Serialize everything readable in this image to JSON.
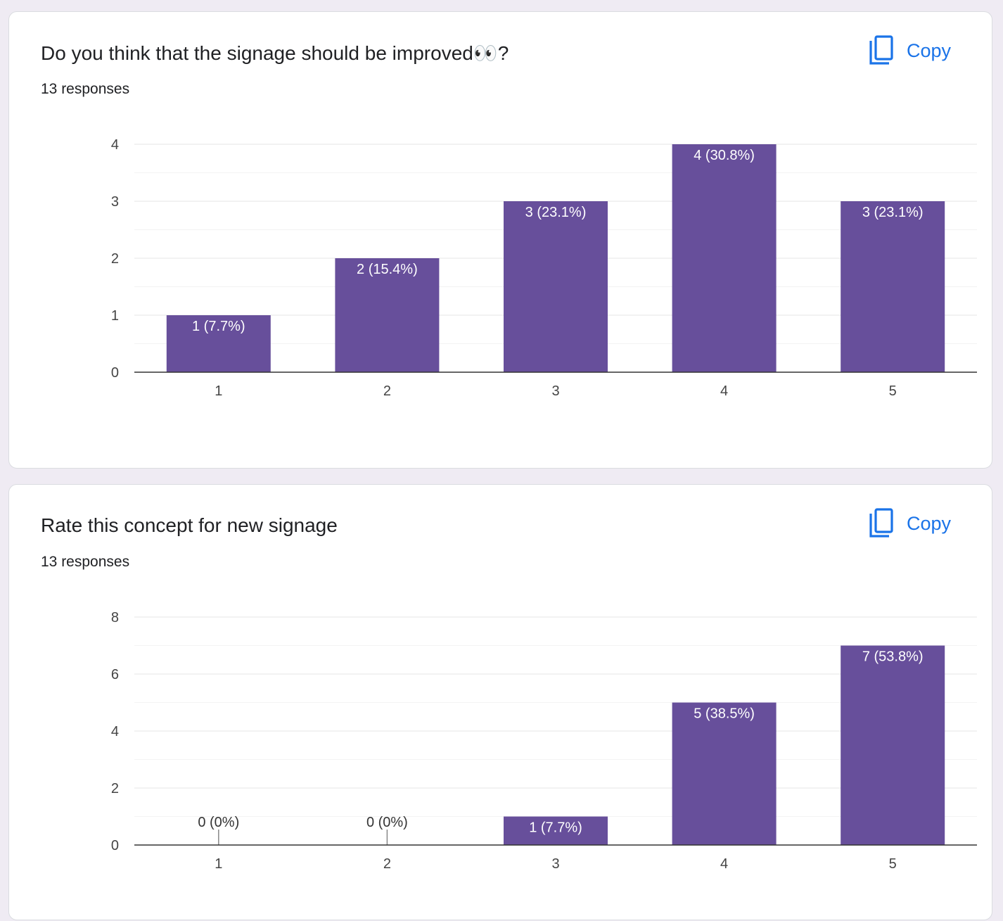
{
  "colors": {
    "bar": "#674f9b",
    "copy_accent": "#1a73e8",
    "gridline": "#eaeaea",
    "axis": "#333333",
    "page_background": "#efebf3"
  },
  "questions": [
    {
      "title": "Do you think that the signage should be improved👀?",
      "responses": "13 responses",
      "copy_label": "Copy",
      "copy_icon": "copy-icon"
    },
    {
      "title": "Rate this concept for new signage",
      "responses": "13 responses",
      "copy_label": "Copy",
      "copy_icon": "copy-icon"
    }
  ],
  "chart_data": [
    {
      "type": "bar",
      "categories": [
        "1",
        "2",
        "3",
        "4",
        "5"
      ],
      "values": [
        1,
        2,
        3,
        4,
        3
      ],
      "data_labels": [
        "1 (7.7%)",
        "2 (15.4%)",
        "3 (23.1%)",
        "4 (30.8%)",
        "3 (23.1%)"
      ],
      "yticks": [
        0,
        1,
        2,
        3,
        4
      ],
      "minor_gridlines": [
        0.5,
        1.5,
        2.5,
        3.5
      ],
      "ylim": [
        0,
        4
      ],
      "grid": true,
      "title": "",
      "xlabel": "",
      "ylabel": ""
    },
    {
      "type": "bar",
      "categories": [
        "1",
        "2",
        "3",
        "4",
        "5"
      ],
      "values": [
        0,
        0,
        1,
        5,
        7
      ],
      "data_labels": [
        "0 (0%)",
        "0 (0%)",
        "1 (7.7%)",
        "5 (38.5%)",
        "7 (53.8%)"
      ],
      "yticks": [
        0,
        2,
        4,
        6,
        8
      ],
      "minor_gridlines": [
        1,
        3,
        5,
        7
      ],
      "ylim": [
        0,
        8
      ],
      "grid": true,
      "title": "",
      "xlabel": "",
      "ylabel": ""
    }
  ]
}
